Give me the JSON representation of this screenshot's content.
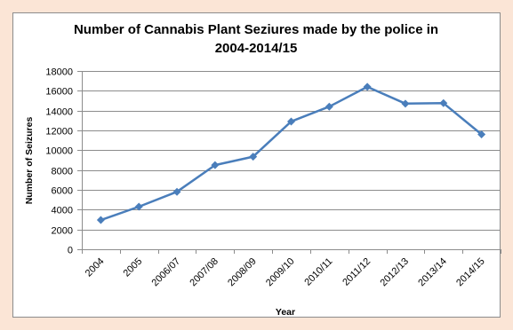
{
  "chart_data": {
    "type": "line",
    "title_lines": [
      "Number of Cannabis Plant Seziures made by the police in",
      "2004-2014/15"
    ],
    "xlabel": "Year",
    "ylabel": "Number of Seizures",
    "categories": [
      "2004",
      "2005",
      "2006/07",
      "2007/08",
      "2008/09",
      "2009/10",
      "2010/11",
      "2011/12",
      "2012/13",
      "2013/14",
      "2014/15"
    ],
    "series": [
      {
        "values": [
          2950,
          4300,
          5800,
          8500,
          9350,
          12900,
          14400,
          16400,
          14700,
          14750,
          11600
        ]
      }
    ],
    "ylim": [
      0,
      18000
    ],
    "yticks": [
      0,
      2000,
      4000,
      6000,
      8000,
      10000,
      12000,
      14000,
      16000,
      18000
    ],
    "grid": true,
    "legend": "none",
    "colors": {
      "line": "#4a7ebb",
      "marker": "#4a7ebb",
      "grid": "#8c8c8c",
      "background": "#fbe5d6"
    }
  }
}
